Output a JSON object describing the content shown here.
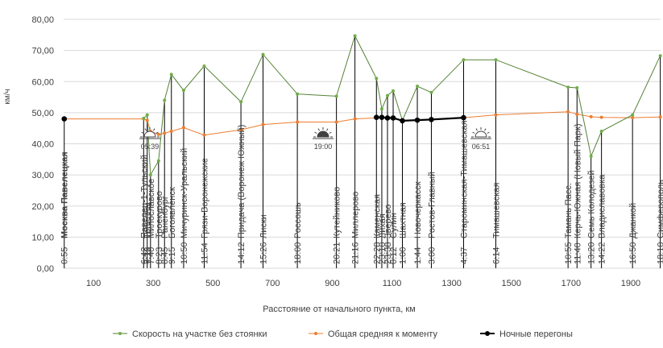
{
  "chart_data": {
    "type": "line",
    "title": "",
    "xlabel": "Расстояние от начального пункта, км",
    "ylabel": "км/ч",
    "xlim": [
      0,
      2000
    ],
    "ylim": [
      0,
      80
    ],
    "x_ticks": [
      100,
      300,
      500,
      700,
      900,
      1100,
      1300,
      1500,
      1700,
      1900
    ],
    "y_ticks": [
      "0,00",
      "10,00",
      "20,00",
      "30,00",
      "40,00",
      "50,00",
      "60,00",
      "70,00",
      "80,00"
    ],
    "colors": {
      "green": "#548235",
      "green_marker": "#70ad47",
      "orange": "#ed7d31",
      "night": "#000000",
      "grid": "#d9d9d9",
      "axis_text": "#595959"
    },
    "series": [
      {
        "name": "Скорость на участке без стоянки",
        "color": "#548235",
        "points": [
          [
            268,
            48.2
          ],
          [
            280,
            49.3
          ],
          [
            291,
            30
          ],
          [
            318,
            34.5
          ],
          [
            338,
            54
          ],
          [
            361,
            62.3
          ],
          [
            402,
            57.2
          ],
          [
            471,
            65
          ],
          [
            594,
            53.5
          ],
          [
            668,
            68.7
          ],
          [
            783,
            56
          ],
          [
            914,
            55.3
          ],
          [
            976,
            74.7
          ],
          [
            1048,
            61
          ],
          [
            1066,
            51.2
          ],
          [
            1085,
            55.5
          ],
          [
            1104,
            57
          ],
          [
            1135,
            47.5
          ],
          [
            1185,
            58.5
          ],
          [
            1232,
            56.5
          ],
          [
            1340,
            67
          ],
          [
            1448,
            67
          ],
          [
            1690,
            58.2
          ],
          [
            1720,
            58
          ],
          [
            1767,
            36
          ],
          [
            1802,
            44
          ],
          [
            1906,
            49.3
          ],
          [
            1999,
            68.3
          ]
        ]
      },
      {
        "name": "Общая средняя к моменту",
        "color": "#ed7d31",
        "points": [
          [
            2,
            48
          ],
          [
            268,
            48
          ],
          [
            280,
            47.5
          ],
          [
            291,
            44
          ],
          [
            318,
            43
          ],
          [
            338,
            43.4
          ],
          [
            361,
            44
          ],
          [
            402,
            45.2
          ],
          [
            471,
            42.8
          ],
          [
            594,
            44.5
          ],
          [
            668,
            46.2
          ],
          [
            783,
            47
          ],
          [
            914,
            47
          ],
          [
            976,
            48
          ],
          [
            1048,
            48.3
          ],
          [
            1066,
            48.4
          ],
          [
            1085,
            48.3
          ],
          [
            1104,
            48.3
          ],
          [
            1135,
            47.4
          ],
          [
            1185,
            47.5
          ],
          [
            1232,
            47.8
          ],
          [
            1340,
            48.4
          ],
          [
            1448,
            49.3
          ],
          [
            1690,
            50.3
          ],
          [
            1720,
            49.5
          ],
          [
            1767,
            48.7
          ],
          [
            1802,
            48.5
          ],
          [
            1906,
            48.4
          ],
          [
            1999,
            48.6
          ]
        ]
      },
      {
        "name": "Ночные перегоны",
        "color": "#000000",
        "segments": [
          [
            [
              2,
              48
            ]
          ],
          [
            [
              1048,
              48.5
            ],
            [
              1066,
              48.5
            ],
            [
              1085,
              48.3
            ],
            [
              1104,
              48.3
            ],
            [
              1135,
              47.4
            ],
            [
              1185,
              47.6
            ],
            [
              1232,
              47.8
            ],
            [
              1340,
              48.4
            ]
          ]
        ]
      }
    ],
    "stations": [
      {
        "name": "Москва Павелецкая",
        "time": "0:55",
        "x": 2,
        "bold": true
      },
      {
        "name": "Павелец-1-Тульский",
        "time": "6:42",
        "x": 268
      },
      {
        "name": "Топилны",
        "time": "7:13",
        "x": 280
      },
      {
        "name": "Милославское",
        "time": "7:40",
        "x": 291
      },
      {
        "name": "Троекурово",
        "time": "8:23",
        "x": 318
      },
      {
        "name": "Раненбург",
        "time": "8:45",
        "x": 338
      },
      {
        "name": "Богоявленск",
        "time": "9:15",
        "x": 361
      },
      {
        "name": "Мичуринск-Уральский",
        "time": "10:50",
        "x": 402
      },
      {
        "name": "Грязи-Воронежские",
        "time": "11:54",
        "x": 471
      },
      {
        "name": "Придача (Воронеж Южный)",
        "time": "14:12",
        "x": 594
      },
      {
        "name": "Лиски",
        "time": "15:26",
        "x": 668
      },
      {
        "name": "Россошь",
        "time": "18:00",
        "x": 783
      },
      {
        "name": "Кутейниково",
        "time": "20:21",
        "x": 914
      },
      {
        "name": "Миллерово",
        "time": "21:16",
        "x": 976
      },
      {
        "name": "Каменская",
        "time": "22:28",
        "x": 1048
      },
      {
        "name": "Лихая",
        "time": "23:10",
        "x": 1066
      },
      {
        "name": "Зверево",
        "time": "23:38",
        "x": 1085
      },
      {
        "name": "Сулин",
        "time": "0:12",
        "x": 1104
      },
      {
        "name": "Шахтная",
        "time": "1:00",
        "x": 1135
      },
      {
        "name": "Новочеркасск",
        "time": "1:44",
        "x": 1185
      },
      {
        "name": "Ростов-Главный",
        "time": "3:00",
        "x": 1232
      },
      {
        "name": "Староминская-Тимашевская",
        "time": "4:37",
        "x": 1340
      },
      {
        "name": "Тимашевская",
        "time": "6:14",
        "x": 1448
      },
      {
        "name": "Тамань Пасс.",
        "time": "10:55",
        "x": 1690
      },
      {
        "name": "Керчь-Южная (Новый Парк)",
        "time": "11:40",
        "x": 1720
      },
      {
        "name": "Семь Колодезей",
        "time": "13:20",
        "x": 1767
      },
      {
        "name": "Владиславовка",
        "time": "14:22",
        "x": 1802
      },
      {
        "name": "Джанкой",
        "time": "16:50",
        "x": 1906
      },
      {
        "name": "Симферополь",
        "time": "18:10",
        "x": 1999
      }
    ],
    "annotations": [
      {
        "label": "05:39",
        "kind": "sunrise",
        "x": 1840,
        "y": 42.2
      },
      {
        "label": "19:00",
        "kind": "sunset",
        "x": 2400,
        "y": 42.2
      },
      {
        "label": "06:51",
        "kind": "sunrise",
        "x": 3950,
        "y": 42.2
      }
    ],
    "legend": [
      {
        "label": "Скорость на участке без стоянки",
        "color": "#548235"
      },
      {
        "label": "Общая средняя к моменту",
        "color": "#ed7d31"
      },
      {
        "label": "Ночные перегоны",
        "color": "#000000"
      }
    ],
    "legend_position": "bottom",
    "grid": true
  }
}
